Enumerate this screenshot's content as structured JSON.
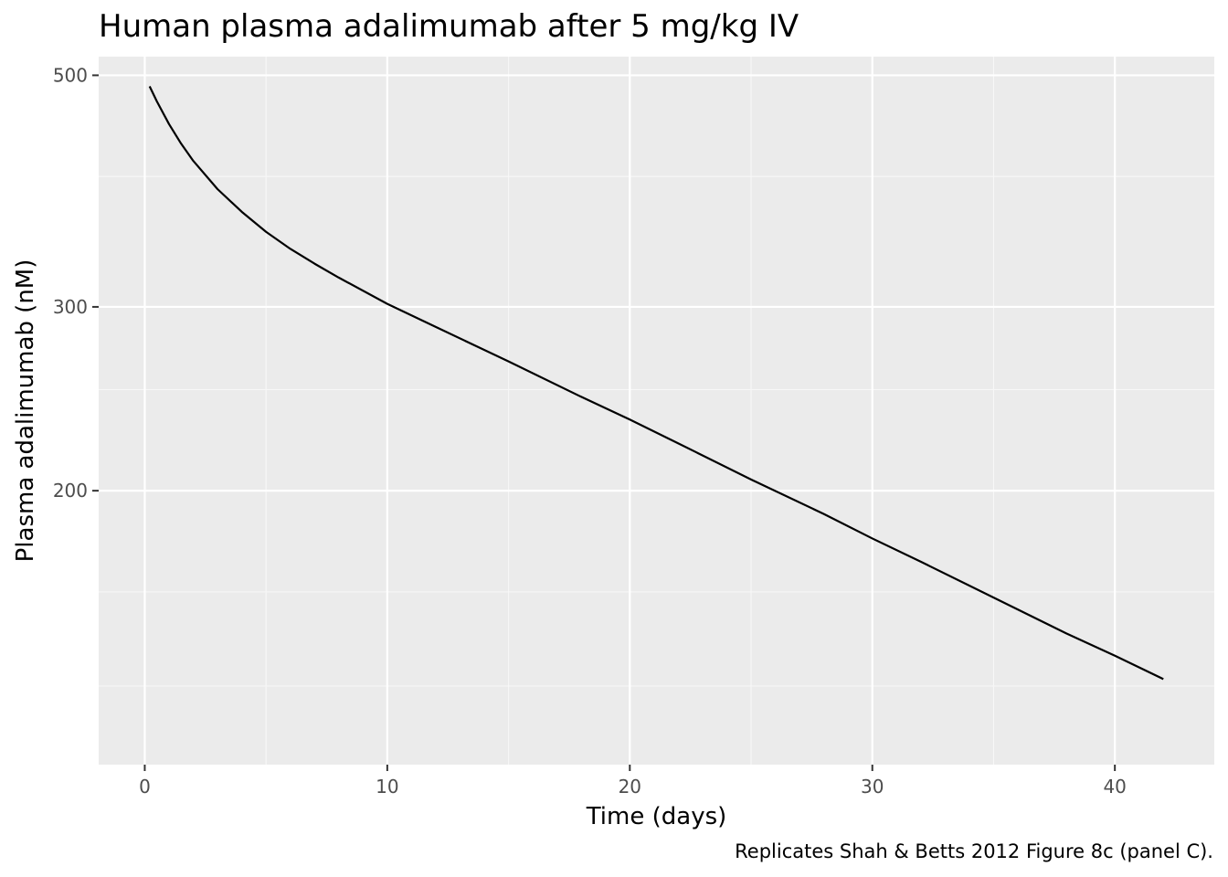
{
  "chart_data": {
    "type": "line",
    "title": "Human plasma adalimumab after 5 mg/kg IV",
    "xlabel": "Time (days)",
    "ylabel": "Plasma adalimumab (nM)",
    "caption": "Replicates Shah & Betts 2012 Figure 8c (panel C).",
    "y_scale": "log",
    "xlim": [
      -1.9,
      44.1
    ],
    "ylim": [
      109.3,
      521
    ],
    "x_ticks": [
      0,
      10,
      20,
      30,
      40
    ],
    "x_tick_labels": [
      "0",
      "10",
      "20",
      "30",
      "40"
    ],
    "x_minor_ticks": [
      5,
      15,
      25,
      35
    ],
    "y_ticks": [
      200,
      300,
      500
    ],
    "y_tick_labels": [
      "200",
      "300",
      "500"
    ],
    "y_minor_ticks": [
      130,
      160,
      250,
      400
    ],
    "grid": true,
    "legend": "none",
    "series": [
      {
        "color": "#000000",
        "x": [
          0.2,
          0.5,
          1,
          1.5,
          2,
          3,
          4,
          5,
          6,
          7,
          8,
          10,
          12,
          15,
          18,
          20,
          22,
          25,
          28,
          30,
          32,
          35,
          38,
          40,
          42
        ],
        "y": [
          488,
          472,
          449,
          430,
          414,
          389,
          370,
          354,
          341,
          330,
          320,
          302,
          287,
          266,
          246,
          234,
          222,
          205,
          190,
          180,
          171,
          158,
          146,
          139,
          132
        ]
      }
    ]
  },
  "colors": {
    "panel_background": "#ebebeb",
    "grid_major": "#ffffff",
    "grid_minor": "#f7f7f7",
    "tick_text": "#4d4d4d",
    "tick_mark": "#333333"
  }
}
